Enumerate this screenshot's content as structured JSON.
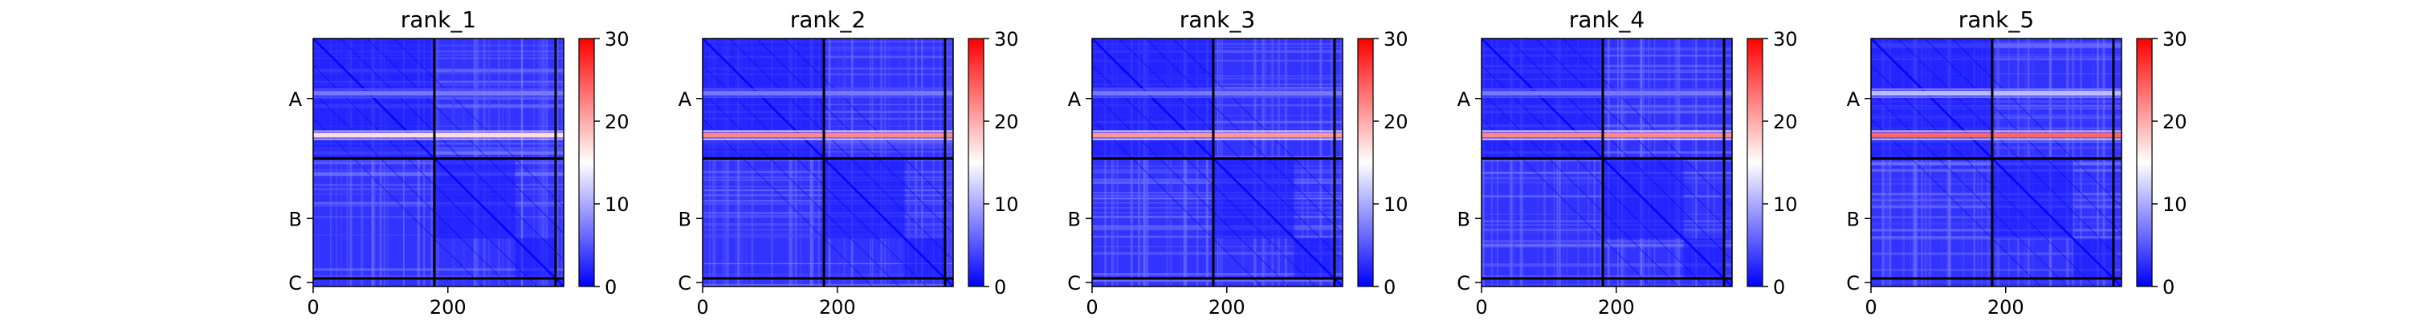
{
  "chart_data": [
    {
      "type": "heatmap",
      "title": "rank_1",
      "xticks": [
        0,
        200
      ],
      "yticklabels": [
        "A",
        "B",
        "C"
      ],
      "chain_boundaries": [
        180,
        360
      ],
      "x_range": [
        0,
        372
      ],
      "colorbar": {
        "ticks": [
          0,
          10,
          20,
          30
        ],
        "range": [
          0,
          30
        ],
        "colormap": "bwr"
      },
      "bright_rows": [
        {
          "row": 145,
          "value": 17
        },
        {
          "row": 82,
          "value": 7
        }
      ]
    },
    {
      "type": "heatmap",
      "title": "rank_2",
      "xticks": [
        0,
        200
      ],
      "yticklabels": [
        "A",
        "B",
        "C"
      ],
      "chain_boundaries": [
        180,
        360
      ],
      "x_range": [
        0,
        372
      ],
      "colorbar": {
        "ticks": [
          0,
          10,
          20,
          30
        ],
        "range": [
          0,
          30
        ],
        "colormap": "bwr"
      },
      "bright_rows": [
        {
          "row": 145,
          "value": 22
        },
        {
          "row": 82,
          "value": 7
        }
      ]
    },
    {
      "type": "heatmap",
      "title": "rank_3",
      "xticks": [
        0,
        200
      ],
      "yticklabels": [
        "A",
        "B",
        "C"
      ],
      "chain_boundaries": [
        180,
        360
      ],
      "x_range": [
        0,
        372
      ],
      "colorbar": {
        "ticks": [
          0,
          10,
          20,
          30
        ],
        "range": [
          0,
          30
        ],
        "colormap": "bwr"
      },
      "bright_rows": [
        {
          "row": 145,
          "value": 21
        },
        {
          "row": 82,
          "value": 7
        }
      ]
    },
    {
      "type": "heatmap",
      "title": "rank_4",
      "xticks": [
        0,
        200
      ],
      "yticklabels": [
        "A",
        "B",
        "C"
      ],
      "chain_boundaries": [
        180,
        360
      ],
      "x_range": [
        0,
        372
      ],
      "colorbar": {
        "ticks": [
          0,
          10,
          20,
          30
        ],
        "range": [
          0,
          30
        ],
        "colormap": "bwr"
      },
      "bright_rows": [
        {
          "row": 145,
          "value": 22
        },
        {
          "row": 82,
          "value": 7
        }
      ]
    },
    {
      "type": "heatmap",
      "title": "rank_5",
      "xticks": [
        0,
        200
      ],
      "yticklabels": [
        "A",
        "B",
        "C"
      ],
      "chain_boundaries": [
        180,
        360
      ],
      "x_range": [
        0,
        372
      ],
      "colorbar": {
        "ticks": [
          0,
          10,
          20,
          30
        ],
        "range": [
          0,
          30
        ],
        "colormap": "bwr"
      },
      "bright_rows": [
        {
          "row": 145,
          "value": 24
        },
        {
          "row": 82,
          "value": 11
        }
      ]
    }
  ]
}
